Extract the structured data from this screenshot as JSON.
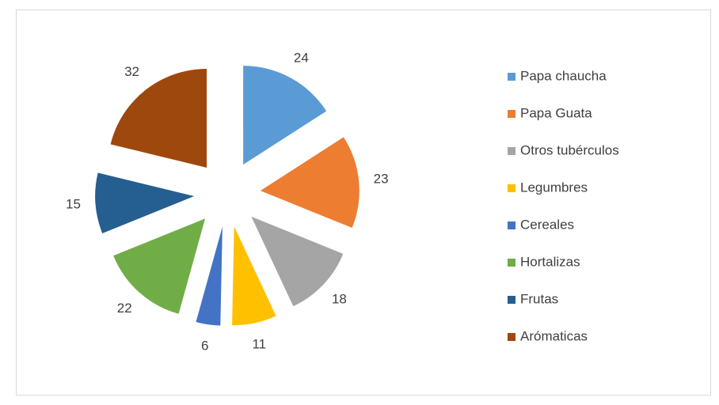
{
  "chart_data": {
    "type": "pie",
    "categories": [
      "Papa chaucha",
      "Papa Guata",
      "Otros tubérculos",
      "Legumbres",
      "Cereales",
      "Hortalizas",
      "Frutas",
      "Arómaticas"
    ],
    "values": [
      24,
      23,
      18,
      11,
      6,
      22,
      15,
      32
    ],
    "colors": [
      "#5b9bd5",
      "#ed7d31",
      "#a5a5a5",
      "#ffc000",
      "#4472c4",
      "#70ad47",
      "#255e91",
      "#9e480e"
    ],
    "exploded": true,
    "legend": "right"
  }
}
